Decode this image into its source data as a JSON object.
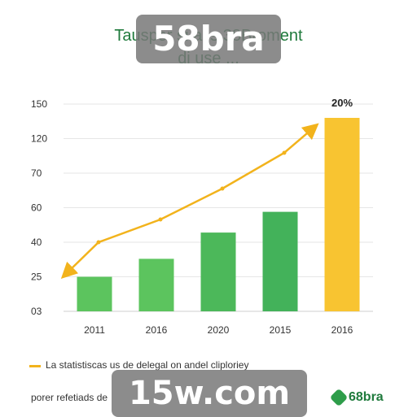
{
  "header": {
    "title_line1": "Tausper si al s 38Broment",
    "title_line2": "di use ..."
  },
  "watermarks": {
    "top": "58bra",
    "bottom": "15w.com"
  },
  "chart_data": {
    "type": "bar",
    "categories": [
      "2011",
      "2016",
      "2020",
      "2015",
      "2016"
    ],
    "values": [
      25,
      38,
      57,
      72,
      140
    ],
    "y_tick_labels": [
      "03",
      "25",
      "40",
      "60",
      "70",
      "120",
      "150"
    ],
    "bar_colors": [
      "#5cc45e",
      "#5cc45e",
      "#4cb85a",
      "#43b25a",
      "#f8c431"
    ],
    "annotation": "20%",
    "trend_color": "#f2b31c",
    "ylim": [
      0,
      150
    ],
    "grid": true
  },
  "legend": {
    "text": "La statistiscas us de delegal on andel cliploriey",
    "color": "#f2b31c"
  },
  "footer": {
    "text": "porer refetiads de",
    "brand": "68bra"
  }
}
